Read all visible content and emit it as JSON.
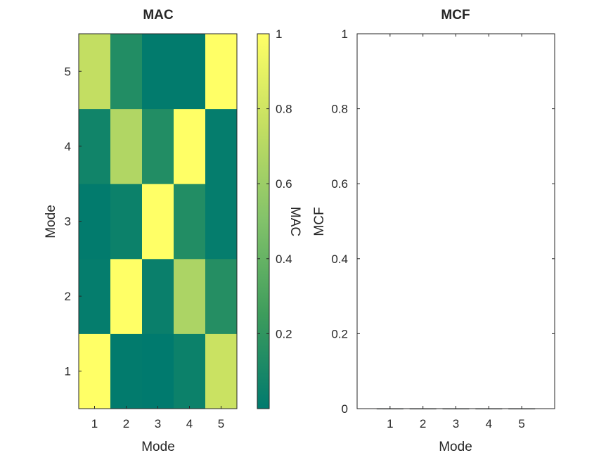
{
  "chart_data": [
    {
      "type": "heatmap",
      "title": "MAC",
      "xlabel": "Mode",
      "ylabel": "Mode",
      "x_categories": [
        "1",
        "2",
        "3",
        "4",
        "5"
      ],
      "y_categories": [
        "1",
        "2",
        "3",
        "4",
        "5"
      ],
      "matrix": [
        [
          1.0,
          0.01,
          0.0,
          0.05,
          0.78
        ],
        [
          0.02,
          1.0,
          0.04,
          0.66,
          0.15
        ],
        [
          0.01,
          0.05,
          1.0,
          0.14,
          0.02
        ],
        [
          0.07,
          0.68,
          0.14,
          1.0,
          0.02
        ],
        [
          0.75,
          0.14,
          0.01,
          0.01,
          1.0
        ]
      ],
      "matrix_note_rows": "row i = y mode i (bottom to top), column j = x mode j",
      "colorbar": {
        "label": "MAC",
        "range": [
          0,
          1
        ],
        "ticks": [
          "0.2",
          "0.4",
          "0.6",
          "0.8",
          "1"
        ],
        "tick_values": [
          0.2,
          0.4,
          0.6,
          0.8,
          1.0
        ],
        "colormap": [
          "#007a6e",
          "#3d9c5c",
          "#82c26a",
          "#c3de62",
          "#ffff66"
        ]
      }
    },
    {
      "type": "bar",
      "title": "MCF",
      "xlabel": "Mode",
      "ylabel": "MCF",
      "categories": [
        "1",
        "2",
        "3",
        "4",
        "5"
      ],
      "values": [
        0.0,
        0.0,
        0.0,
        0.0,
        0.0
      ],
      "ylim": [
        0,
        1
      ],
      "yticks": [
        "0",
        "0.2",
        "0.4",
        "0.6",
        "0.8",
        "1"
      ],
      "ytick_values": [
        0,
        0.2,
        0.4,
        0.6,
        0.8,
        1
      ]
    }
  ]
}
